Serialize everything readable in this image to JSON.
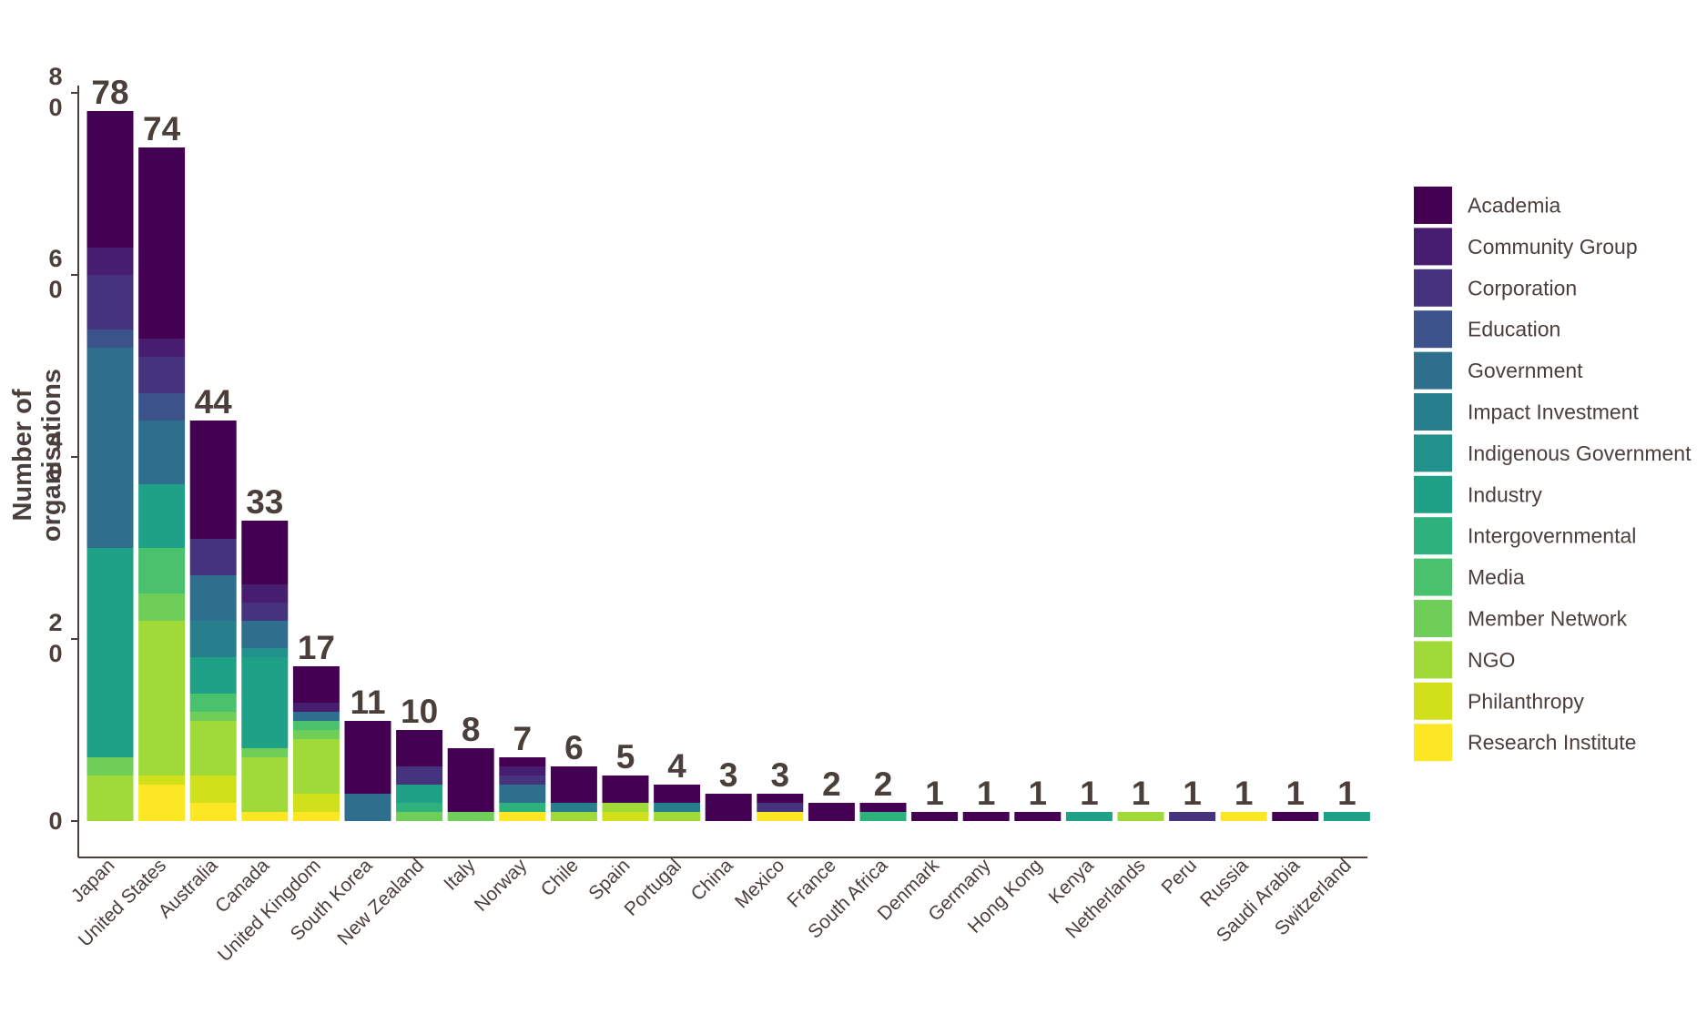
{
  "chart_data": {
    "type": "bar",
    "stacked": true,
    "xlabel": "",
    "ylabel": "Number of organisations",
    "ylim": [
      0,
      80
    ],
    "yticks": [
      0,
      20,
      40,
      60,
      80
    ],
    "grid": false,
    "legend_position": "right",
    "categories": [
      "Japan",
      "United States",
      "Australia",
      "Canada",
      "United Kingdom",
      "South Korea",
      "New Zealand",
      "Italy",
      "Norway",
      "Chile",
      "Spain",
      "Portugal",
      "China",
      "Mexico",
      "France",
      "South Africa",
      "Denmark",
      "Germany",
      "Hong Kong",
      "Kenya",
      "Netherlands",
      "Peru",
      "Russia",
      "Saudi Arabia",
      "Switzerland"
    ],
    "totals": [
      78,
      74,
      44,
      33,
      17,
      11,
      10,
      8,
      7,
      6,
      5,
      4,
      3,
      3,
      2,
      2,
      1,
      1,
      1,
      1,
      1,
      1,
      1,
      1,
      1
    ],
    "series": [
      {
        "name": "Research Institute",
        "color": "#fde725",
        "values": [
          0,
          4,
          2,
          1,
          1,
          0,
          0,
          0,
          1,
          0,
          0,
          0,
          0,
          1,
          0,
          0,
          0,
          0,
          0,
          0,
          0,
          0,
          1,
          0,
          0
        ]
      },
      {
        "name": "Philanthropy",
        "color": "#d0e11c",
        "values": [
          0,
          1,
          3,
          0,
          2,
          0,
          0,
          0,
          0,
          0,
          1,
          0,
          0,
          0,
          0,
          0,
          0,
          0,
          0,
          0,
          0,
          0,
          0,
          0,
          0
        ]
      },
      {
        "name": "NGO",
        "color": "#a0da39",
        "values": [
          5,
          17,
          6,
          6,
          6,
          0,
          0,
          0,
          0,
          1,
          1,
          1,
          0,
          0,
          0,
          0,
          0,
          0,
          0,
          0,
          1,
          0,
          0,
          0,
          0
        ]
      },
      {
        "name": "Member Network",
        "color": "#6ece58",
        "values": [
          2,
          3,
          1,
          1,
          1,
          0,
          1,
          1,
          0,
          0,
          0,
          0,
          0,
          0,
          0,
          0,
          0,
          0,
          0,
          0,
          0,
          0,
          0,
          0,
          0
        ]
      },
      {
        "name": "Media",
        "color": "#4ac16d",
        "values": [
          0,
          5,
          2,
          0,
          1,
          0,
          0,
          0,
          0,
          0,
          0,
          0,
          0,
          0,
          0,
          0,
          0,
          0,
          0,
          0,
          0,
          0,
          0,
          0,
          0
        ]
      },
      {
        "name": "Intergovernmental",
        "color": "#2db27d",
        "values": [
          0,
          0,
          0,
          0,
          0,
          0,
          1,
          0,
          1,
          0,
          0,
          0,
          0,
          0,
          0,
          1,
          0,
          0,
          0,
          0,
          0,
          0,
          0,
          0,
          0
        ]
      },
      {
        "name": "Industry",
        "color": "#1fa187",
        "values": [
          23,
          7,
          4,
          10,
          0,
          0,
          2,
          0,
          0,
          0,
          0,
          0,
          0,
          0,
          0,
          0,
          0,
          0,
          0,
          1,
          0,
          0,
          0,
          0,
          1
        ]
      },
      {
        "name": "Indigenous Government",
        "color": "#21918c",
        "values": [
          0,
          0,
          0,
          1,
          0,
          0,
          0,
          0,
          0,
          0,
          0,
          0,
          0,
          0,
          0,
          0,
          0,
          0,
          0,
          0,
          0,
          0,
          0,
          0,
          0
        ]
      },
      {
        "name": "Impact Investment",
        "color": "#277f8e",
        "values": [
          0,
          0,
          4,
          0,
          0,
          0,
          0,
          0,
          0,
          1,
          0,
          1,
          0,
          0,
          0,
          0,
          0,
          0,
          0,
          0,
          0,
          0,
          0,
          0,
          0
        ]
      },
      {
        "name": "Government",
        "color": "#2e6f8e",
        "values": [
          22,
          7,
          5,
          3,
          1,
          3,
          0,
          0,
          2,
          0,
          0,
          0,
          0,
          0,
          0,
          0,
          0,
          0,
          0,
          0,
          0,
          0,
          0,
          0,
          0
        ]
      },
      {
        "name": "Education",
        "color": "#3b528b",
        "values": [
          2,
          3,
          0,
          0,
          0,
          0,
          0,
          0,
          0,
          0,
          0,
          0,
          0,
          0,
          0,
          0,
          0,
          0,
          0,
          0,
          0,
          0,
          0,
          0,
          0
        ]
      },
      {
        "name": "Corporation",
        "color": "#46337e",
        "values": [
          6,
          4,
          4,
          2,
          0,
          0,
          2,
          0,
          1,
          0,
          0,
          0,
          0,
          1,
          0,
          0,
          0,
          0,
          0,
          0,
          0,
          1,
          0,
          0,
          0
        ]
      },
      {
        "name": "Community Group",
        "color": "#471d6f",
        "values": [
          3,
          2,
          0,
          2,
          1,
          0,
          0,
          0,
          1,
          0,
          0,
          0,
          0,
          0,
          0,
          0,
          0,
          0,
          0,
          0,
          0,
          0,
          0,
          0,
          0
        ]
      },
      {
        "name": "Academia",
        "color": "#440154",
        "values": [
          15,
          21,
          13,
          7,
          4,
          8,
          4,
          7,
          1,
          4,
          3,
          2,
          3,
          1,
          2,
          1,
          1,
          1,
          1,
          0,
          0,
          0,
          0,
          1,
          0
        ]
      }
    ],
    "legend_order": [
      "Academia",
      "Community Group",
      "Corporation",
      "Education",
      "Government",
      "Impact Investment",
      "Indigenous Government",
      "Industry",
      "Intergovernmental",
      "Media",
      "Member Network",
      "NGO",
      "Philanthropy",
      "Research Institute"
    ]
  }
}
